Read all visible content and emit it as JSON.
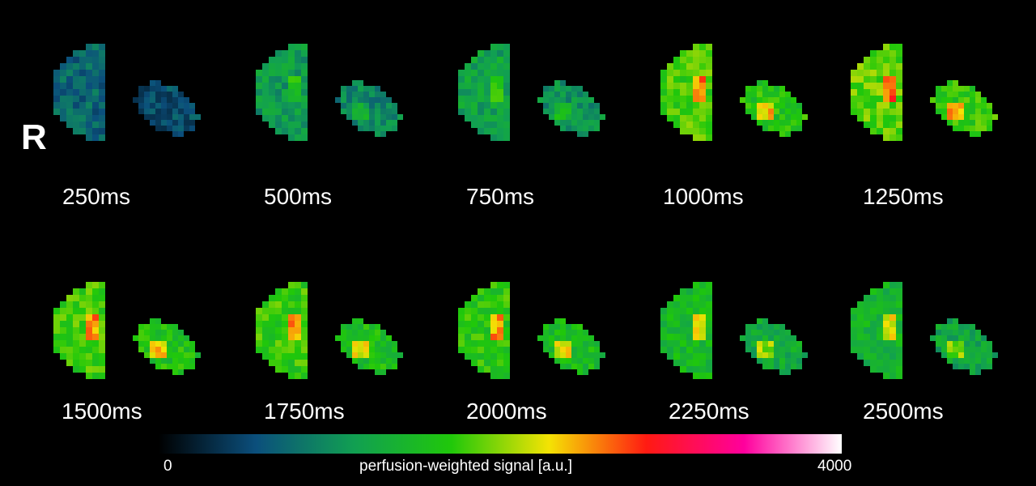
{
  "orientation_label": "R",
  "colormap": {
    "stops": [
      "#000000",
      "#0b4f7c",
      "#119f52",
      "#20c80a",
      "#f4e304",
      "#ff1a12",
      "#ff009d",
      "#ffffff"
    ],
    "min_label": "0",
    "max_label": "4000",
    "title": "perfusion-weighted signal [a.u.]"
  },
  "frames": [
    {
      "label": "250ms",
      "intensity": 0.18
    },
    {
      "label": "500ms",
      "intensity": 0.28
    },
    {
      "label": "750ms",
      "intensity": 0.3
    },
    {
      "label": "1000ms",
      "intensity": 0.45
    },
    {
      "label": "1250ms",
      "intensity": 0.47
    },
    {
      "label": "1500ms",
      "intensity": 0.44
    },
    {
      "label": "1750ms",
      "intensity": 0.43
    },
    {
      "label": "2000ms",
      "intensity": 0.42
    },
    {
      "label": "2250ms",
      "intensity": 0.37
    },
    {
      "label": "2500ms",
      "intensity": 0.35
    }
  ]
}
